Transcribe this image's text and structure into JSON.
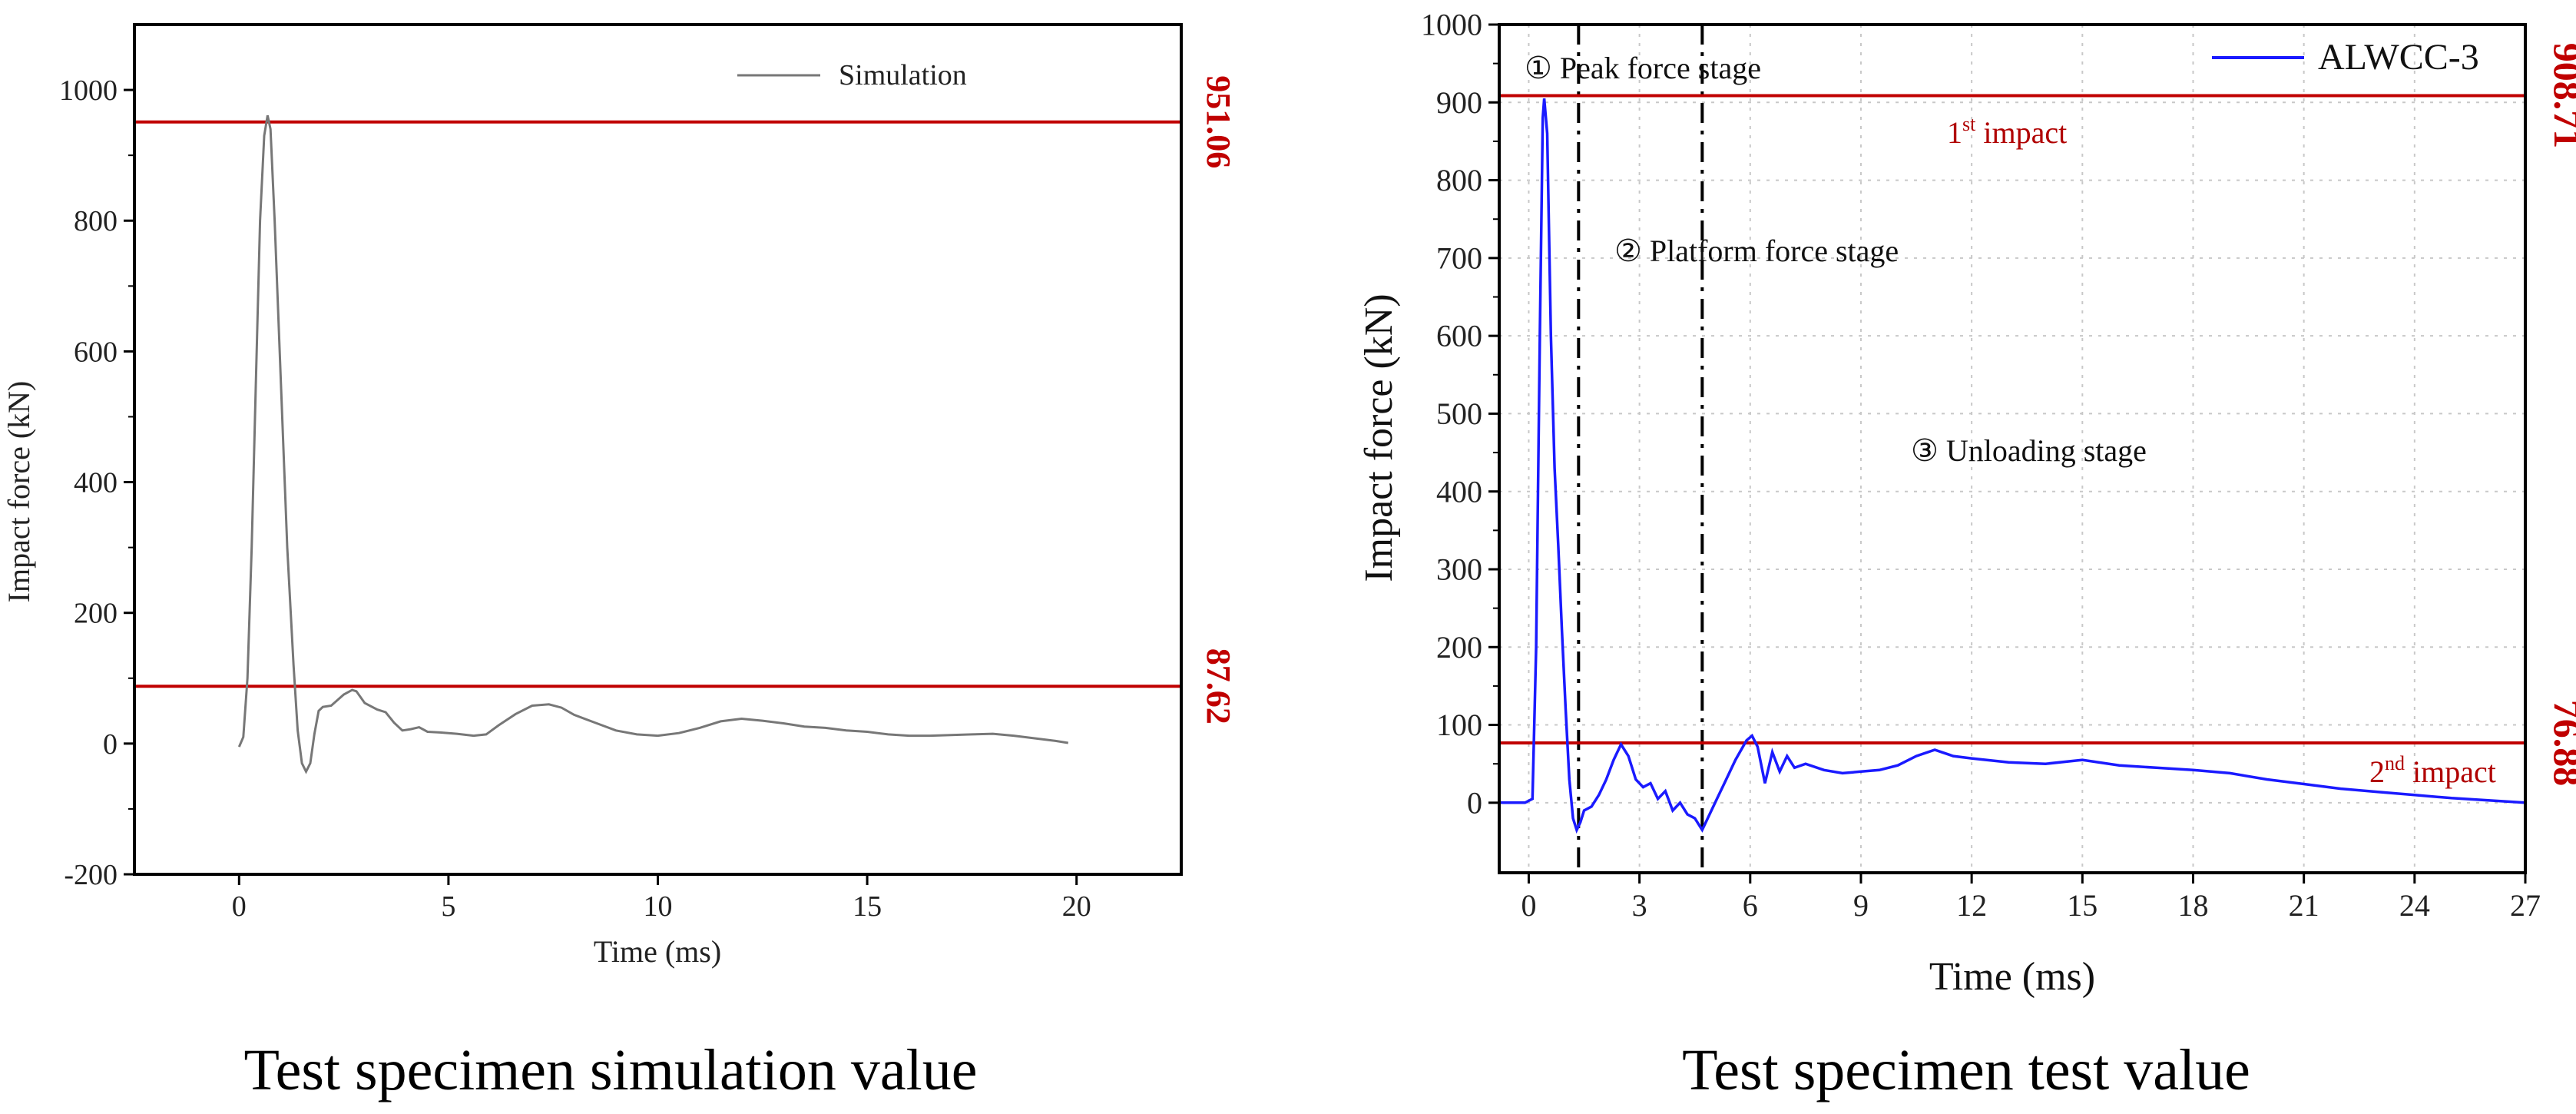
{
  "chart_data": [
    {
      "id": "left",
      "type": "line",
      "caption": "Test specimen simulation value",
      "xlabel": "Time (ms)",
      "ylabel": "Impact force  (kN)",
      "xlim": [
        -2.5,
        22.5
      ],
      "ylim": [
        -200,
        1100
      ],
      "xticks": [
        "0",
        "5",
        "10",
        "15",
        "20"
      ],
      "xtick_values": [
        0,
        5,
        10,
        15,
        20
      ],
      "yticks": [
        "-200",
        "0",
        "200",
        "400",
        "600",
        "800",
        "1000"
      ],
      "ytick_values": [
        -200,
        0,
        200,
        400,
        600,
        800,
        1000
      ],
      "grid": false,
      "legend": {
        "position": "top-right",
        "label": "Simulation"
      },
      "series": [
        {
          "name": "Simulation",
          "color": "#777777",
          "points": [
            [
              0,
              -5
            ],
            [
              0.1,
              10
            ],
            [
              0.2,
              100
            ],
            [
              0.3,
              300
            ],
            [
              0.4,
              550
            ],
            [
              0.5,
              800
            ],
            [
              0.6,
              930
            ],
            [
              0.68,
              961
            ],
            [
              0.75,
              940
            ],
            [
              0.85,
              800
            ],
            [
              1.0,
              550
            ],
            [
              1.15,
              300
            ],
            [
              1.3,
              120
            ],
            [
              1.4,
              20
            ],
            [
              1.5,
              -30
            ],
            [
              1.6,
              -43
            ],
            [
              1.7,
              -30
            ],
            [
              1.8,
              15
            ],
            [
              1.9,
              50
            ],
            [
              2.0,
              56
            ],
            [
              2.2,
              58
            ],
            [
              2.5,
              75
            ],
            [
              2.7,
              82
            ],
            [
              2.8,
              80
            ],
            [
              3.0,
              62
            ],
            [
              3.3,
              52
            ],
            [
              3.5,
              48
            ],
            [
              3.7,
              32
            ],
            [
              3.9,
              20
            ],
            [
              4.1,
              22
            ],
            [
              4.3,
              25
            ],
            [
              4.5,
              18
            ],
            [
              4.8,
              17
            ],
            [
              5.2,
              15
            ],
            [
              5.6,
              12
            ],
            [
              5.9,
              14
            ],
            [
              6.2,
              28
            ],
            [
              6.6,
              45
            ],
            [
              7.0,
              58
            ],
            [
              7.4,
              60
            ],
            [
              7.7,
              55
            ],
            [
              8.0,
              44
            ],
            [
              8.5,
              32
            ],
            [
              9.0,
              20
            ],
            [
              9.5,
              14
            ],
            [
              10.0,
              12
            ],
            [
              10.5,
              16
            ],
            [
              11.0,
              24
            ],
            [
              11.5,
              34
            ],
            [
              12.0,
              38
            ],
            [
              12.5,
              35
            ],
            [
              13.0,
              31
            ],
            [
              13.5,
              26
            ],
            [
              14.0,
              24
            ],
            [
              14.5,
              20
            ],
            [
              15.0,
              18
            ],
            [
              15.5,
              14
            ],
            [
              16.0,
              12
            ],
            [
              16.5,
              12
            ],
            [
              17.0,
              13
            ],
            [
              17.5,
              14
            ],
            [
              18.0,
              15
            ],
            [
              18.5,
              12
            ],
            [
              19.0,
              8
            ],
            [
              19.5,
              4
            ],
            [
              19.8,
              1
            ]
          ]
        }
      ],
      "reference_lines": [
        {
          "value": 951.06,
          "label": "951.06",
          "color": "#c00000"
        },
        {
          "value": 87.62,
          "label": "87.62",
          "color": "#c00000"
        }
      ]
    },
    {
      "id": "right",
      "type": "line",
      "caption": "Test specimen test value",
      "xlabel": "Time (ms)",
      "ylabel": "Impact force (kN)",
      "xlim": [
        -0.8,
        27
      ],
      "ylim": [
        -90,
        1000
      ],
      "xticks": [
        "0",
        "3",
        "6",
        "9",
        "12",
        "15",
        "18",
        "21",
        "24",
        "27"
      ],
      "xtick_values": [
        0,
        3,
        6,
        9,
        12,
        15,
        18,
        21,
        24,
        27
      ],
      "yticks": [
        "0",
        "100",
        "200",
        "300",
        "400",
        "500",
        "600",
        "700",
        "800",
        "900",
        "1000"
      ],
      "ytick_values": [
        0,
        100,
        200,
        300,
        400,
        500,
        600,
        700,
        800,
        900,
        1000
      ],
      "grid": true,
      "legend": {
        "position": "top-right",
        "label": "ALWCC-3"
      },
      "series": [
        {
          "name": "ALWCC-3",
          "color": "#1a1aff",
          "points": [
            [
              -0.8,
              0
            ],
            [
              -0.1,
              0
            ],
            [
              0.1,
              5
            ],
            [
              0.2,
              200
            ],
            [
              0.3,
              600
            ],
            [
              0.38,
              880
            ],
            [
              0.42,
              905
            ],
            [
              0.5,
              860
            ],
            [
              0.6,
              600
            ],
            [
              0.7,
              430
            ],
            [
              0.8,
              330
            ],
            [
              0.9,
              220
            ],
            [
              1.0,
              120
            ],
            [
              1.1,
              30
            ],
            [
              1.2,
              -20
            ],
            [
              1.3,
              -35
            ],
            [
              1.4,
              -25
            ],
            [
              1.5,
              -10
            ],
            [
              1.7,
              -5
            ],
            [
              1.9,
              10
            ],
            [
              2.1,
              30
            ],
            [
              2.3,
              55
            ],
            [
              2.5,
              75
            ],
            [
              2.7,
              60
            ],
            [
              2.9,
              30
            ],
            [
              3.1,
              20
            ],
            [
              3.3,
              25
            ],
            [
              3.5,
              5
            ],
            [
              3.7,
              15
            ],
            [
              3.9,
              -10
            ],
            [
              4.1,
              0
            ],
            [
              4.3,
              -15
            ],
            [
              4.5,
              -20
            ],
            [
              4.7,
              -35
            ],
            [
              4.9,
              -15
            ],
            [
              5.1,
              5
            ],
            [
              5.3,
              25
            ],
            [
              5.6,
              55
            ],
            [
              5.9,
              80
            ],
            [
              6.05,
              86
            ],
            [
              6.2,
              72
            ],
            [
              6.4,
              25
            ],
            [
              6.6,
              65
            ],
            [
              6.8,
              40
            ],
            [
              7.0,
              60
            ],
            [
              7.2,
              45
            ],
            [
              7.5,
              50
            ],
            [
              8.0,
              42
            ],
            [
              8.5,
              38
            ],
            [
              9.0,
              40
            ],
            [
              9.5,
              42
            ],
            [
              10.0,
              48
            ],
            [
              10.5,
              60
            ],
            [
              11.0,
              68
            ],
            [
              11.5,
              60
            ],
            [
              12.0,
              57
            ],
            [
              13.0,
              52
            ],
            [
              14.0,
              50
            ],
            [
              15.0,
              55
            ],
            [
              16.0,
              48
            ],
            [
              17.0,
              45
            ],
            [
              18.0,
              42
            ],
            [
              19.0,
              38
            ],
            [
              20.0,
              30
            ],
            [
              21.0,
              24
            ],
            [
              22.0,
              18
            ],
            [
              23.0,
              14
            ],
            [
              24.0,
              10
            ],
            [
              25.0,
              6
            ],
            [
              26.0,
              3
            ],
            [
              27.0,
              0
            ]
          ]
        }
      ],
      "reference_lines": [
        {
          "value": 908.71,
          "label": "908.71",
          "color": "#c00000"
        },
        {
          "value": 76.88,
          "label": "76.88",
          "color": "#c00000"
        }
      ],
      "stage_dividers": [
        1.35,
        4.7
      ],
      "annotations": {
        "peak_stage": "① Peak force stage",
        "platform_stage": "②  Platform force stage",
        "unloading_stage": "③ Unloading stage",
        "first_impact_sup": "st",
        "first_impact_main": "1",
        "first_impact_rest": " impact",
        "second_impact_main": "2",
        "second_impact_sup": "nd",
        "second_impact_rest": " impact"
      }
    }
  ]
}
